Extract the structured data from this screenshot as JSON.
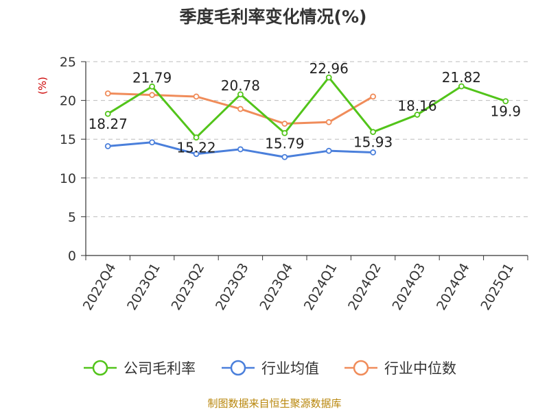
{
  "chart_data": {
    "type": "line",
    "title": "季度毛利率变化情况(%)",
    "ylabel": "(%)",
    "xlabel": "",
    "ylim": [
      0,
      25
    ],
    "yticks": [
      0,
      5,
      10,
      15,
      20,
      25
    ],
    "grid": true,
    "legend_position": "bottom",
    "categories": [
      "2022Q4",
      "2023Q1",
      "2023Q2",
      "2023Q3",
      "2023Q4",
      "2024Q1",
      "2024Q2",
      "2024Q3",
      "2024Q4",
      "2025Q1"
    ],
    "series": [
      {
        "name": "公司毛利率",
        "color": "#52c41a",
        "values": [
          18.27,
          21.79,
          15.22,
          20.78,
          15.79,
          22.96,
          15.93,
          18.16,
          21.82,
          19.9
        ],
        "labels": [
          "18.27",
          "21.79",
          "15.22",
          "20.78",
          "15.79",
          "22.96",
          "15.93",
          "18.16",
          "21.82",
          "19.9"
        ]
      },
      {
        "name": "行业均值",
        "color": "#4a7fdb",
        "values": [
          14.1,
          14.6,
          13.1,
          13.7,
          12.7,
          13.5,
          13.3,
          null,
          null,
          null
        ]
      },
      {
        "name": "行业中位数",
        "color": "#f08c5a",
        "values": [
          20.9,
          20.7,
          20.5,
          18.9,
          17.0,
          17.2,
          20.5,
          null,
          null,
          null
        ]
      }
    ],
    "source": "制图数据来自恒生聚源数据库"
  }
}
